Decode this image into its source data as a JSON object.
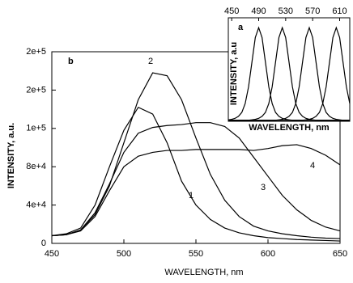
{
  "chart_data": [
    {
      "type": "line",
      "panel_label": "b",
      "xlabel": "WAVELENGTH, nm",
      "ylabel": "INTENSITY, a.u.",
      "x": [
        450,
        460,
        470,
        480,
        490,
        500,
        510,
        520,
        530,
        540,
        550,
        560,
        570,
        580,
        590,
        600,
        610,
        620,
        630,
        640,
        650
      ],
      "xlim": [
        450,
        650
      ],
      "xticks": [
        450,
        500,
        550,
        600,
        650
      ],
      "ylim": [
        0,
        200000
      ],
      "yticks": [
        0,
        {
          "value": 40000,
          "label": "4e+4"
        },
        {
          "value": 80000,
          "label": "8e+4"
        },
        {
          "value": 120000,
          "label": "1e+5"
        },
        {
          "value": 160000,
          "label": "2e+5"
        },
        {
          "value": 200000,
          "label": "2e+5"
        }
      ],
      "series": [
        {
          "name": "1",
          "color": "#000000",
          "values": [
            8000,
            10000,
            16000,
            40000,
            80000,
            118000,
            142000,
            135000,
            105000,
            65000,
            40000,
            25000,
            16000,
            11000,
            8000,
            6000,
            5000,
            4000,
            3500,
            3000,
            2500
          ]
        },
        {
          "name": "2",
          "color": "#000000",
          "values": [
            8000,
            9000,
            14000,
            30000,
            60000,
            105000,
            150000,
            178000,
            175000,
            150000,
            110000,
            72000,
            45000,
            28000,
            18000,
            13000,
            10000,
            8000,
            6500,
            5500,
            5000
          ]
        },
        {
          "name": "3",
          "color": "#000000",
          "values": [
            8000,
            9000,
            14000,
            32000,
            62000,
            95000,
            115000,
            121000,
            123000,
            124000,
            126000,
            126000,
            122000,
            110000,
            90000,
            70000,
            50000,
            35000,
            24000,
            17000,
            13000
          ]
        },
        {
          "name": "4",
          "color": "#000000",
          "values": [
            8000,
            9000,
            13000,
            28000,
            55000,
            80000,
            91000,
            95000,
            97000,
            97000,
            98000,
            98000,
            98000,
            98000,
            97000,
            99000,
            102000,
            103000,
            99000,
            92000,
            82000
          ]
        }
      ]
    },
    {
      "type": "line",
      "panel_label": "a",
      "xlabel": "WAVELENGTH, nm",
      "ylabel": "INTENSITY, a.u",
      "x": [
        445,
        450,
        455,
        460,
        465,
        470,
        475,
        480,
        485,
        490,
        495,
        500,
        505,
        510,
        515,
        520,
        525,
        530,
        535,
        540,
        545,
        550,
        555,
        560,
        565,
        570,
        575,
        580,
        585,
        590,
        595,
        600,
        605,
        610,
        615,
        620,
        625
      ],
      "xlim": [
        445,
        625
      ],
      "xticks": [
        450,
        490,
        530,
        570,
        610
      ],
      "ylim": [
        0,
        1.05
      ],
      "series": [
        {
          "color": "#000000",
          "values": [
            0.015,
            0.02,
            0.03,
            0.05,
            0.09,
            0.18,
            0.35,
            0.6,
            0.85,
            0.95,
            0.85,
            0.6,
            0.35,
            0.18,
            0.09,
            0.05,
            0.03,
            0.02,
            0.015,
            0.01,
            0.01,
            0.01,
            0.01,
            0.01,
            0.01,
            0.01,
            0.01,
            0.01,
            0.01,
            0.01,
            0.01,
            0.01,
            0.01,
            0.01,
            0.01,
            0.01,
            0.01
          ]
        },
        {
          "color": "#000000",
          "values": [
            0.01,
            0.01,
            0.01,
            0.01,
            0.01,
            0.01,
            0.01,
            0.015,
            0.02,
            0.03,
            0.05,
            0.09,
            0.18,
            0.35,
            0.6,
            0.85,
            0.95,
            0.85,
            0.6,
            0.35,
            0.18,
            0.09,
            0.05,
            0.03,
            0.02,
            0.015,
            0.01,
            0.01,
            0.01,
            0.01,
            0.01,
            0.01,
            0.01,
            0.01,
            0.01,
            0.01,
            0.01
          ]
        },
        {
          "color": "#000000",
          "values": [
            0.01,
            0.01,
            0.01,
            0.01,
            0.01,
            0.01,
            0.01,
            0.01,
            0.01,
            0.01,
            0.01,
            0.01,
            0.01,
            0.01,
            0.01,
            0.015,
            0.02,
            0.03,
            0.05,
            0.09,
            0.18,
            0.35,
            0.6,
            0.85,
            0.95,
            0.85,
            0.6,
            0.35,
            0.18,
            0.09,
            0.05,
            0.03,
            0.02,
            0.015,
            0.01,
            0.01,
            0.01
          ]
        },
        {
          "color": "#000000",
          "values": [
            0.01,
            0.01,
            0.01,
            0.01,
            0.01,
            0.01,
            0.01,
            0.01,
            0.01,
            0.01,
            0.01,
            0.01,
            0.01,
            0.01,
            0.01,
            0.01,
            0.01,
            0.01,
            0.01,
            0.01,
            0.01,
            0.01,
            0.01,
            0.015,
            0.02,
            0.03,
            0.05,
            0.09,
            0.18,
            0.35,
            0.6,
            0.85,
            0.95,
            0.85,
            0.6,
            0.35,
            0.18
          ]
        }
      ]
    }
  ]
}
